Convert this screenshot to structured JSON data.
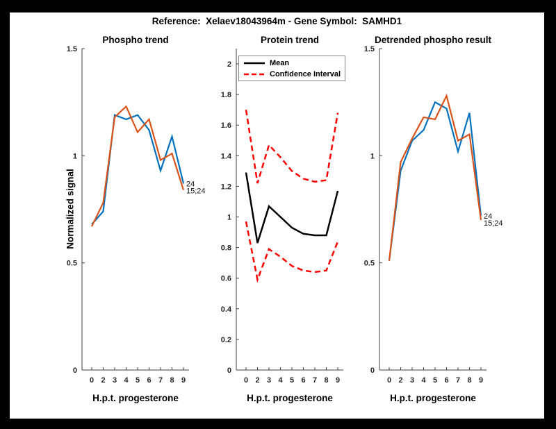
{
  "figure": {
    "title": "Reference:  Xelaev18043964m - Gene Symbol:  SAMHD1",
    "background_color": "#ffffff",
    "frame_color": "#000000"
  },
  "axis_style": {
    "line_color": "#3f3f3f",
    "tick_label_color": "#262626",
    "end_label_color": "#111111"
  },
  "chart_data": [
    {
      "type": "line",
      "title": "Phospho trend",
      "xlabel": "H.p.t. progesterone",
      "ylabel": "Normalized signal",
      "categories": [
        "0",
        "2",
        "3",
        "4",
        "5",
        "6",
        "7",
        "8",
        "9"
      ],
      "ylim": [
        0,
        1.5
      ],
      "yticks": [
        0,
        0.5,
        1,
        1.5
      ],
      "ytick_labels": [
        "0",
        "0.5",
        "1",
        "1.5"
      ],
      "grid": false,
      "series": [
        {
          "name": "24",
          "color": "#0072BD",
          "style": "solid",
          "width": 2.2,
          "values": [
            0.68,
            0.74,
            1.19,
            1.17,
            1.19,
            1.12,
            0.93,
            1.09,
            0.87
          ],
          "end_label": "24"
        },
        {
          "name": "15;24",
          "color": "#D95319",
          "style": "solid",
          "width": 2.2,
          "values": [
            0.67,
            0.78,
            1.18,
            1.23,
            1.11,
            1.17,
            0.98,
            1.01,
            0.84
          ],
          "end_label": "15;24"
        }
      ]
    },
    {
      "type": "line",
      "title": "Protein trend",
      "xlabel": "H.p.t. progesterone",
      "ylabel": "",
      "categories": [
        "0",
        "2",
        "3",
        "4",
        "5",
        "6",
        "7",
        "8",
        "9"
      ],
      "ylim": [
        0,
        2.1
      ],
      "yticks": [
        0,
        0.2,
        0.4,
        0.6,
        0.8,
        1,
        1.2,
        1.4,
        1.6,
        1.8,
        2
      ],
      "ytick_labels": [
        "0",
        "0.2",
        "0.4",
        "0.6",
        "0.8",
        "1",
        "1.2",
        "1.4",
        "1.6",
        "1.8",
        "2"
      ],
      "grid": false,
      "legend": {
        "position": "top-left",
        "entries": [
          "Mean",
          "Confidence Interval"
        ]
      },
      "series": [
        {
          "name": "Mean",
          "color": "#000000",
          "style": "solid",
          "width": 2.5,
          "values": [
            1.29,
            0.83,
            1.07,
            1.0,
            0.93,
            0.89,
            0.88,
            0.88,
            1.17
          ]
        },
        {
          "name": "Confidence Interval upper",
          "color": "#FF0000",
          "style": "dashed",
          "width": 2.5,
          "values": [
            1.7,
            1.22,
            1.47,
            1.39,
            1.3,
            1.25,
            1.23,
            1.24,
            1.68
          ]
        },
        {
          "name": "Confidence Interval lower",
          "color": "#FF0000",
          "style": "dashed",
          "width": 2.5,
          "values": [
            0.97,
            0.59,
            0.79,
            0.74,
            0.68,
            0.65,
            0.64,
            0.65,
            0.84
          ]
        }
      ]
    },
    {
      "type": "line",
      "title": "Detrended phospho result",
      "xlabel": "H.p.t. progesterone",
      "ylabel": "",
      "categories": [
        "0",
        "2",
        "3",
        "4",
        "5",
        "6",
        "7",
        "8",
        "9"
      ],
      "ylim": [
        0,
        1.5
      ],
      "yticks": [
        0,
        0.5,
        1,
        1.5
      ],
      "ytick_labels": [
        "0",
        "0.5",
        "1",
        "1.5"
      ],
      "grid": false,
      "series": [
        {
          "name": "24",
          "color": "#0072BD",
          "style": "solid",
          "width": 2.2,
          "values": [
            0.51,
            0.93,
            1.07,
            1.12,
            1.25,
            1.22,
            1.02,
            1.2,
            0.72
          ],
          "end_label": "24"
        },
        {
          "name": "15;24",
          "color": "#D95319",
          "style": "solid",
          "width": 2.2,
          "values": [
            0.51,
            0.97,
            1.08,
            1.18,
            1.17,
            1.28,
            1.07,
            1.1,
            0.7
          ],
          "end_label": "15;24"
        }
      ]
    }
  ]
}
